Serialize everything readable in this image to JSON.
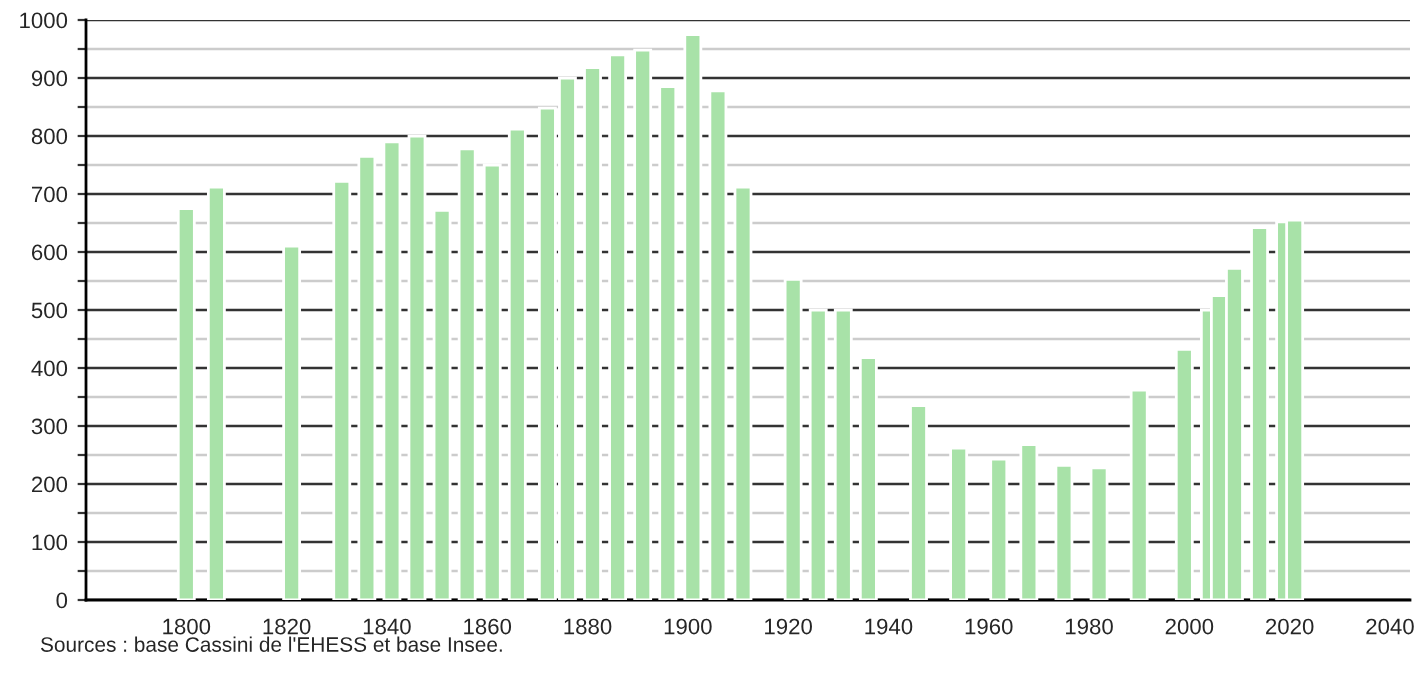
{
  "chart_data": {
    "type": "bar",
    "x": [
      1800,
      1806,
      1821,
      1831,
      1836,
      1841,
      1846,
      1851,
      1856,
      1861,
      1866,
      1872,
      1876,
      1881,
      1886,
      1891,
      1896,
      1901,
      1906,
      1911,
      1921,
      1926,
      1931,
      1936,
      1946,
      1954,
      1962,
      1968,
      1975,
      1982,
      1990,
      1999,
      2004,
      2006,
      2009,
      2014,
      2019,
      2021
    ],
    "values": [
      675,
      712,
      610,
      722,
      765,
      790,
      800,
      672,
      778,
      750,
      812,
      848,
      900,
      918,
      940,
      948,
      885,
      975,
      878,
      712,
      553,
      500,
      500,
      418,
      335,
      262,
      243,
      268,
      232,
      228,
      362,
      432,
      500,
      525,
      572,
      642,
      652,
      655
    ],
    "color": "#a8e2a8",
    "xlim": [
      1780,
      2044
    ],
    "xticks": [
      1800,
      1820,
      1840,
      1860,
      1880,
      1900,
      1920,
      1940,
      1960,
      1980,
      2000,
      2020,
      2040
    ],
    "ylim": [
      0,
      1000
    ],
    "yticks": [
      0,
      {
        "value": 50,
        "label": null
      },
      100,
      {
        "value": 150,
        "label": null
      },
      200,
      {
        "value": 250,
        "label": null
      },
      300,
      {
        "value": 350,
        "label": null
      },
      400,
      {
        "value": 450,
        "label": null
      },
      500,
      {
        "value": 550,
        "label": null
      },
      600,
      {
        "value": 650,
        "label": null
      },
      700,
      {
        "value": 750,
        "label": null
      },
      800,
      {
        "value": 850,
        "label": null
      },
      900,
      {
        "value": 950,
        "label": null
      },
      1000
    ],
    "grid": "y",
    "annotations": [
      "Sources : base Cassini de l'EHESS et base Insee."
    ]
  }
}
